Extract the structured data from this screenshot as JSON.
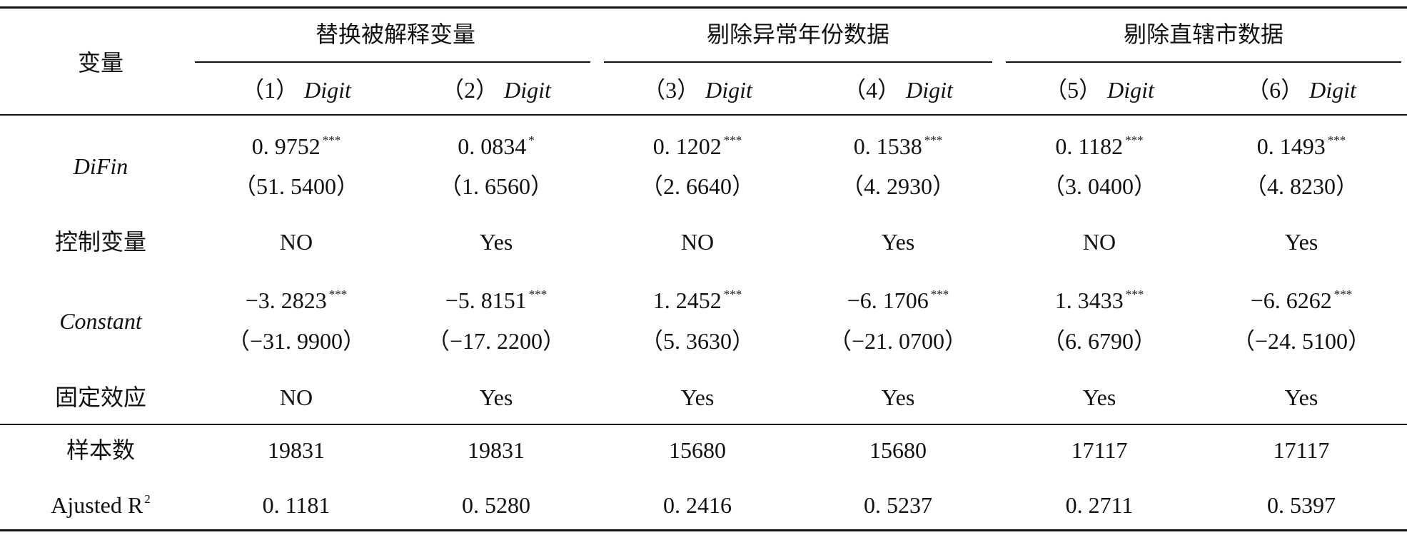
{
  "table": {
    "stub_header": "变量",
    "groups": [
      "替换被解释变量",
      "剔除异常年份数据",
      "剔除直辖市数据"
    ],
    "columns": [
      {
        "number": "（1）",
        "dependent": "Digit"
      },
      {
        "number": "（2）",
        "dependent": "Digit"
      },
      {
        "number": "（3）",
        "dependent": "Digit"
      },
      {
        "number": "（4）",
        "dependent": "Digit"
      },
      {
        "number": "（5）",
        "dependent": "Digit"
      },
      {
        "number": "（6）",
        "dependent": "Digit"
      }
    ],
    "rows": [
      {
        "label": "DiFin",
        "cells": [
          {
            "coef": "0. 9752",
            "stars": "***",
            "t": "（51. 5400）"
          },
          {
            "coef": "0. 0834",
            "stars": "*",
            "t": "（1. 6560）"
          },
          {
            "coef": "0. 1202",
            "stars": "***",
            "t": "（2. 6640）"
          },
          {
            "coef": "0. 1538",
            "stars": "***",
            "t": "（4. 2930）"
          },
          {
            "coef": "0. 1182",
            "stars": "***",
            "t": "（3. 0400）"
          },
          {
            "coef": "0. 1493",
            "stars": "***",
            "t": "（4. 8230）"
          }
        ]
      },
      {
        "label": "控制变量",
        "cells": [
          "NO",
          "Yes",
          "NO",
          "Yes",
          "NO",
          "Yes"
        ]
      },
      {
        "label": "Constant",
        "cells": [
          {
            "coef": "−3. 2823",
            "stars": "***",
            "t": "（−31. 9900）"
          },
          {
            "coef": "−5. 8151",
            "stars": "***",
            "t": "（−17. 2200）"
          },
          {
            "coef": "1. 2452",
            "stars": "***",
            "t": "（5. 3630）"
          },
          {
            "coef": "−6. 1706",
            "stars": "***",
            "t": "（−21. 0700）"
          },
          {
            "coef": "1. 3433",
            "stars": "***",
            "t": "（6. 6790）"
          },
          {
            "coef": "−6. 6262",
            "stars": "***",
            "t": "（−24. 5100）"
          }
        ]
      },
      {
        "label": "固定效应",
        "cells": [
          "NO",
          "Yes",
          "Yes",
          "Yes",
          "Yes",
          "Yes"
        ]
      },
      {
        "label": "样本数",
        "cells": [
          "19831",
          "19831",
          "15680",
          "15680",
          "17117",
          "17117"
        ]
      },
      {
        "label": "Ajusted R",
        "label_sup": "2",
        "cells": [
          "0. 1181",
          "0. 5280",
          "0. 2416",
          "0. 5237",
          "0. 2711",
          "0. 5397"
        ]
      }
    ]
  }
}
